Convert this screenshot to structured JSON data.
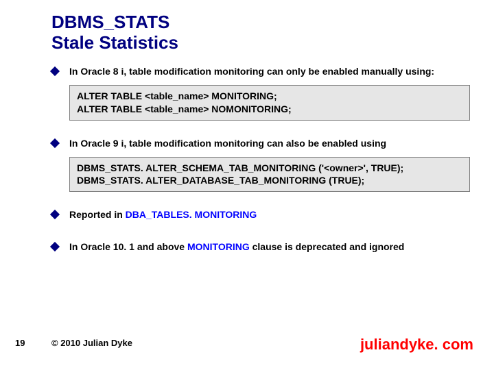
{
  "title_line1": "DBMS_STATS",
  "title_line2": "Stale Statistics",
  "bullets": {
    "b1_pre": "In Oracle 8 i, table modification monitoring can only be enabled manually using:",
    "b2_pre": "In Oracle 9 i, table modification monitoring can also be enabled using",
    "b3_pre": "Reported in ",
    "b3_kw": "DBA_TABLES. MONITORING",
    "b4_pre": "In Oracle 10. 1 and above ",
    "b4_kw": "MONITORING",
    "b4_post": " clause is deprecated and ignored"
  },
  "code1_line1": "ALTER TABLE <table_name> MONITORING;",
  "code1_line2": "ALTER TABLE <table_name> NOMONITORING;",
  "code2_line1": "DBMS_STATS. ALTER_SCHEMA_TAB_MONITORING ('<owner>', TRUE);",
  "code2_line2": "DBMS_STATS. ALTER_DATABASE_TAB_MONITORING (TRUE);",
  "page_number": "19",
  "copyright": "© 2010 Julian Dyke",
  "site": "juliandyke. com",
  "colors": {
    "title": "#000080",
    "bullet": "#000080",
    "keyword": "#0000ff",
    "code_bg": "#e6e6e6",
    "code_border": "#808080",
    "site": "#ff0000",
    "text": "#000000",
    "background": "#ffffff"
  },
  "fonts": {
    "title_size_pt": 20,
    "body_size_pt": 11,
    "site_size_pt": 17
  }
}
